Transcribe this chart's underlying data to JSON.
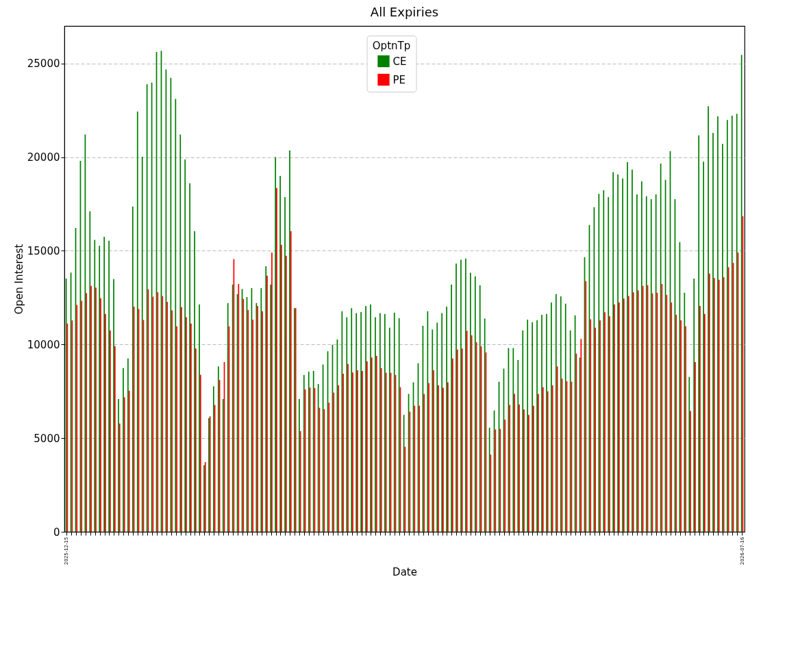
{
  "chart_data": {
    "type": "bar",
    "title": "All Expiries",
    "xlabel": "Date",
    "ylabel": "Open Interest",
    "legend_title": "OptnTp",
    "categories": [
      "2025-12-15",
      null,
      null,
      null,
      null,
      null,
      null,
      null,
      null,
      null,
      null,
      null,
      null,
      null,
      null,
      null,
      null,
      null,
      null,
      null,
      null,
      null,
      null,
      null,
      null,
      null,
      null,
      null,
      null,
      null,
      null,
      null,
      null,
      null,
      null,
      null,
      null,
      null,
      null,
      null,
      null,
      null,
      null,
      null,
      null,
      null,
      null,
      null,
      null,
      null,
      null,
      null,
      null,
      null,
      null,
      null,
      null,
      null,
      null,
      null,
      null,
      null,
      null,
      null,
      null,
      null,
      null,
      null,
      null,
      null,
      null,
      null,
      null,
      null,
      null,
      null,
      null,
      null,
      null,
      null,
      null,
      null,
      null,
      null,
      null,
      null,
      null,
      null,
      null,
      null,
      null,
      null,
      null,
      null,
      null,
      null,
      null,
      null,
      null,
      null,
      null,
      null,
      null,
      null,
      null,
      null,
      null,
      null,
      null,
      null,
      null,
      null,
      null,
      null,
      null,
      null,
      null,
      null,
      null,
      null,
      null,
      null,
      null,
      null,
      null,
      null,
      null,
      null,
      null,
      null,
      null,
      null,
      null,
      null,
      null,
      null,
      null,
      null,
      null,
      null,
      null,
      null,
      "2026-07-16"
    ],
    "series": [
      {
        "name": "CE",
        "color": "#008000",
        "values": [
          13520,
          13840,
          16220,
          19800,
          21210,
          17110,
          15580,
          15270,
          15750,
          15540,
          13490,
          7090,
          8740,
          9250,
          17360,
          22430,
          20020,
          23890,
          23980,
          25610,
          25680,
          24680,
          24230,
          23110,
          21210,
          19880,
          18610,
          16050,
          12140,
          3550,
          6070,
          7760,
          8830,
          7090,
          12210,
          13200,
          12690,
          12960,
          12530,
          13010,
          12210,
          13010,
          14180,
          13200,
          20000,
          19000,
          17870,
          20360,
          11940,
          7090,
          8370,
          8550,
          8590,
          7890,
          8930,
          9640,
          9980,
          10270,
          11770,
          11450,
          11940,
          11670,
          11730,
          12060,
          12140,
          11450,
          11670,
          11630,
          10900,
          11700,
          11410,
          6240,
          7360,
          7980,
          9000,
          11000,
          11770,
          10800,
          11160,
          11670,
          12020,
          13200,
          14320,
          14520,
          14590,
          13830,
          13640,
          13160,
          11390,
          5560,
          6480,
          8010,
          8710,
          9810,
          9810,
          9170,
          10750,
          11330,
          11190,
          11290,
          11580,
          11630,
          12240,
          12690,
          12570,
          12180,
          10750,
          11550,
          9300,
          14660,
          16380,
          17330,
          18040,
          18230,
          17870,
          19200,
          19080,
          18860,
          19730,
          19340,
          18010,
          18710,
          17910,
          17760,
          18010,
          19660,
          18790,
          20320,
          17760,
          15460,
          12760,
          8270,
          13520,
          21160,
          19760,
          22720,
          21290,
          22180,
          20710,
          21990,
          22210,
          22310,
          25460
        ]
      },
      {
        "name": "PE",
        "color": "#ff0000",
        "values": [
          11120,
          11280,
          12110,
          12330,
          12740,
          13130,
          13030,
          12470,
          11630,
          10750,
          9910,
          5780,
          7180,
          7530,
          12020,
          11890,
          11310,
          12940,
          12550,
          12790,
          12590,
          12280,
          11820,
          10970,
          11990,
          11450,
          11120,
          9780,
          8380,
          3720,
          6160,
          6770,
          8100,
          9060,
          10970,
          14560,
          13230,
          12430,
          11840,
          11330,
          12060,
          11770,
          13670,
          14910,
          18350,
          15320,
          14730,
          16050,
          11940,
          5370,
          7600,
          7700,
          7670,
          6620,
          6550,
          6890,
          7430,
          7820,
          8440,
          8960,
          8500,
          8620,
          8590,
          9100,
          9300,
          9390,
          8740,
          8490,
          8490,
          8370,
          7720,
          4540,
          6410,
          6730,
          6730,
          7360,
          7940,
          8620,
          7820,
          7690,
          7980,
          9250,
          9730,
          9780,
          10730,
          10490,
          10120,
          9900,
          9570,
          4120,
          5460,
          5490,
          5990,
          6770,
          7360,
          6800,
          6530,
          6240,
          6730,
          7360,
          7720,
          7500,
          7820,
          8830,
          8180,
          8040,
          8010,
          9510,
          10290,
          13380,
          11340,
          10900,
          11280,
          11720,
          11510,
          12140,
          12240,
          12450,
          12590,
          12790,
          12890,
          13130,
          13160,
          12720,
          12760,
          13230,
          12650,
          12240,
          11580,
          11290,
          10970,
          6450,
          9060,
          12060,
          11630,
          13780,
          13550,
          13450,
          13590,
          14120,
          14350,
          14910,
          16840
        ]
      }
    ],
    "ylim": [
      0,
      27000
    ],
    "yticks": [
      0,
      5000,
      10000,
      15000,
      20000,
      25000
    ],
    "grid": "y",
    "legend": "top"
  }
}
